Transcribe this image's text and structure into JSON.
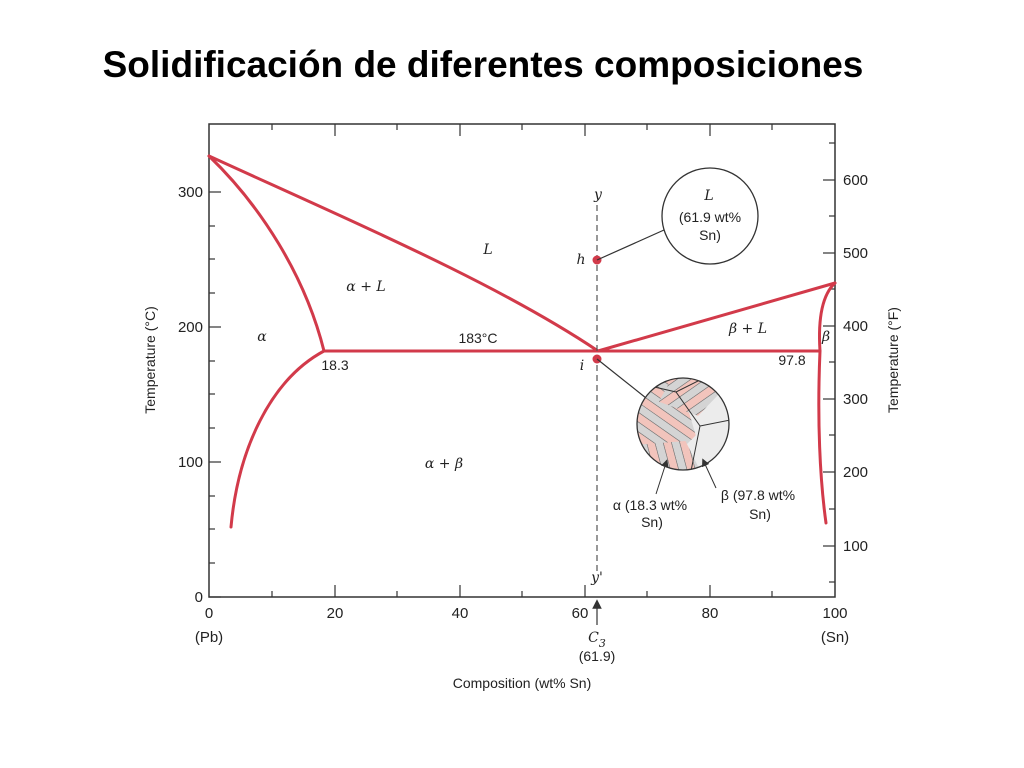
{
  "slide": {
    "title": "Solidificación de diferentes composiciones"
  },
  "axes": {
    "x_ticks": [
      "0",
      "20",
      "40",
      "60",
      "80",
      "100"
    ],
    "x_end_labels": {
      "left": "(Pb)",
      "right": "(Sn)"
    },
    "x_title": "Composition (wt% Sn)",
    "y_left_ticks": [
      "0",
      "100",
      "200",
      "300"
    ],
    "y_left_title": "Temperature (°C)",
    "y_right_ticks": [
      "100",
      "200",
      "300",
      "400",
      "500",
      "600"
    ],
    "y_right_title": "Temperature (°F)"
  },
  "regions": {
    "liquid": "L",
    "alpha_liquid": "α + L",
    "alpha": "α",
    "beta_liquid": "β + L",
    "beta": "β",
    "alpha_beta": "α + β"
  },
  "eutectic": {
    "temperature": "183°C",
    "alpha_comp": "18.3",
    "beta_comp": "97.8"
  },
  "composition_line": {
    "top_label": "y",
    "bottom_label": "y'",
    "point_h": "h",
    "point_i": "i",
    "c_label": "C",
    "c_subscript": "3",
    "c_value": "(61.9)"
  },
  "callout_liquid": {
    "phase": "L",
    "line1": "(61.9 wt%",
    "line2": "Sn)"
  },
  "callout_alpha": {
    "line1": "α (18.3 wt%",
    "line2": "Sn)"
  },
  "callout_beta": {
    "line1": "β (97.8 wt%",
    "line2": "Sn)"
  },
  "colors": {
    "phase_line": "#d23a4a",
    "lamella_pink": "#f2c4bc",
    "lamella_gray": "#d4d4d4"
  }
}
